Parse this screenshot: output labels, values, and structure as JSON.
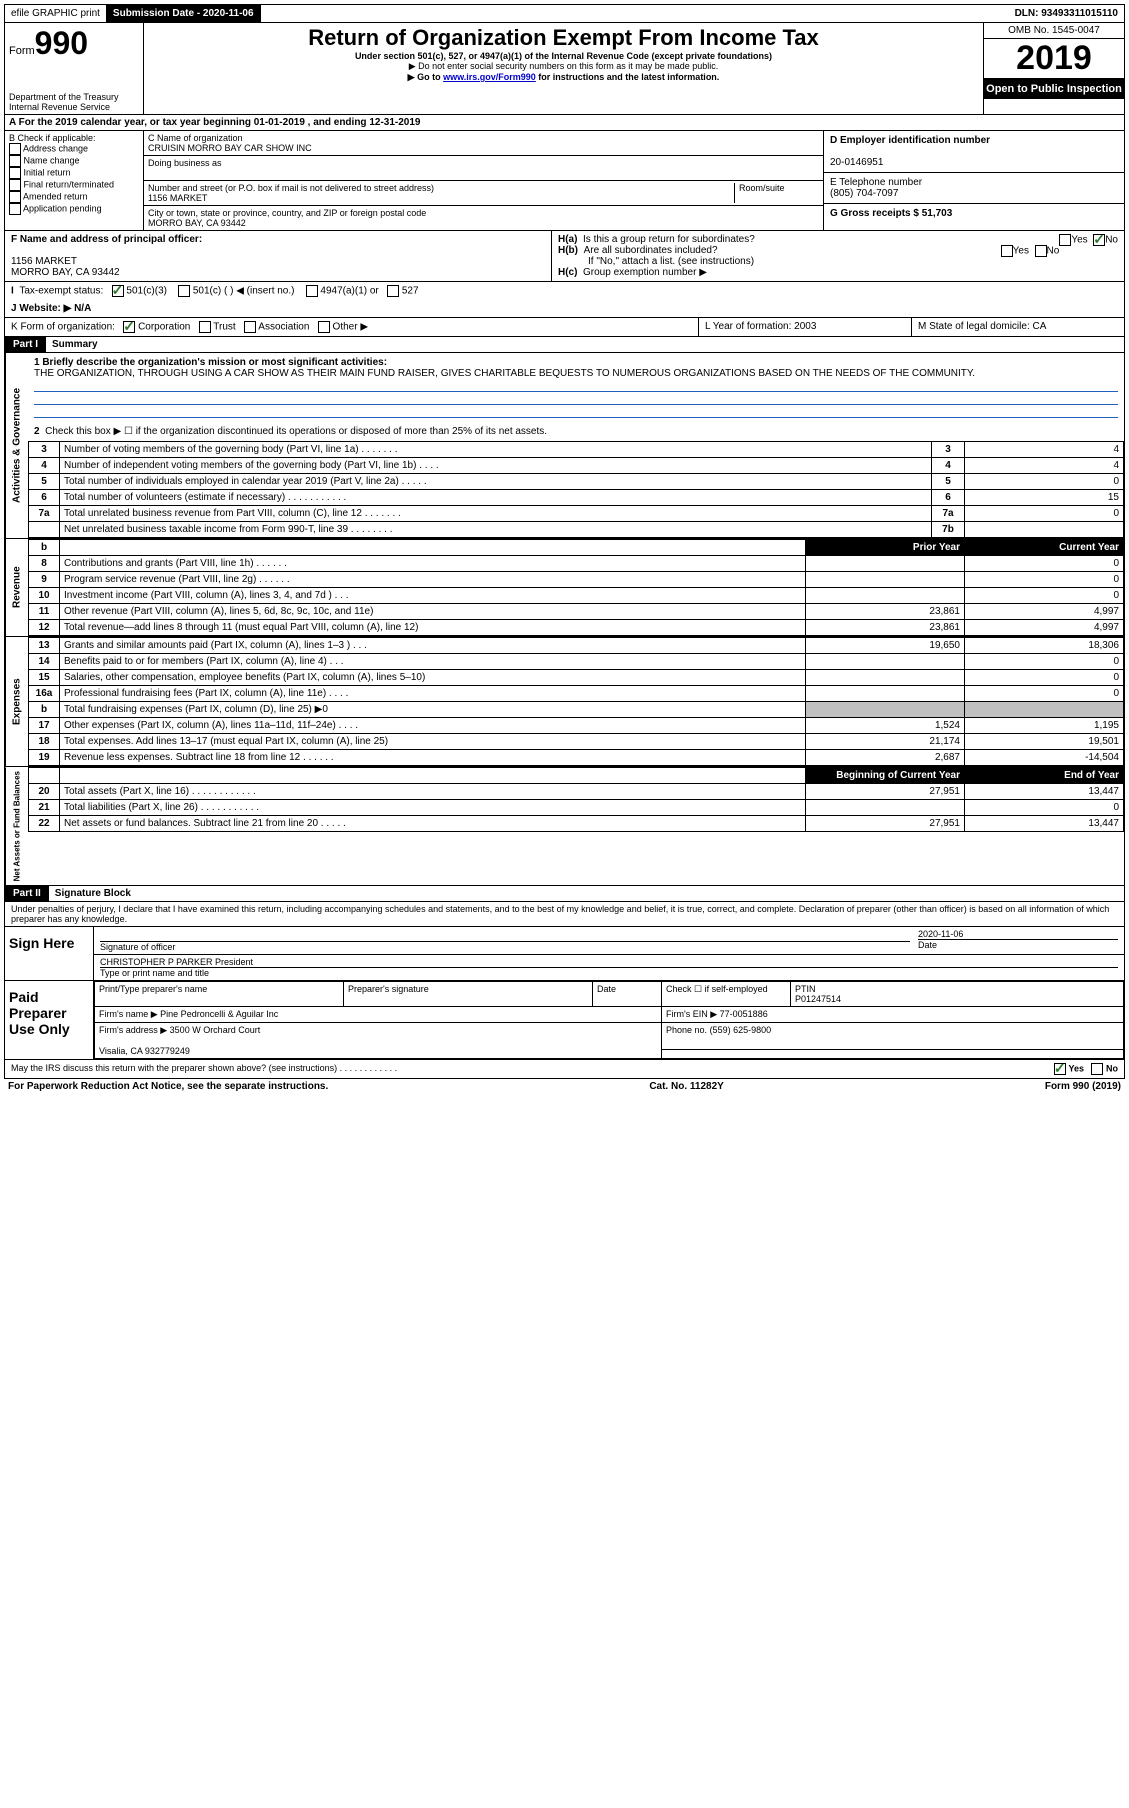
{
  "topbar": {
    "efile": "efile GRAPHIC print",
    "submission_label": "Submission Date - 2020-11-06",
    "dln": "DLN: 93493311015110"
  },
  "header": {
    "form_word": "Form",
    "form_num": "990",
    "dept1": "Department of the Treasury",
    "dept2": "Internal Revenue Service",
    "title": "Return of Organization Exempt From Income Tax",
    "subtitle": "Under section 501(c), 527, or 4947(a)(1) of the Internal Revenue Code (except private foundations)",
    "note1": "▶ Do not enter social security numbers on this form as it may be made public.",
    "note2_pre": "▶ Go to ",
    "note2_link": "www.irs.gov/Form990",
    "note2_post": " for instructions and the latest information.",
    "omb": "OMB No. 1545-0047",
    "year": "2019",
    "open": "Open to Public Inspection"
  },
  "rowA": "A  For the 2019 calendar year, or tax year beginning 01-01-2019    , and ending 12-31-2019",
  "colB": {
    "label": "B Check if applicable:",
    "opts": [
      "Address change",
      "Name change",
      "Initial return",
      "Final return/terminated",
      "Amended return",
      "Application pending"
    ]
  },
  "colC": {
    "name_lbl": "C Name of organization",
    "name": "CRUISIN MORRO BAY CAR SHOW INC",
    "dba_lbl": "Doing business as",
    "addr_lbl": "Number and street (or P.O. box if mail is not delivered to street address)",
    "room_lbl": "Room/suite",
    "addr": "1156 MARKET",
    "city_lbl": "City or town, state or province, country, and ZIP or foreign postal code",
    "city": "MORRO BAY, CA  93442"
  },
  "colD": {
    "ein_lbl": "D Employer identification number",
    "ein": "20-0146951",
    "tel_lbl": "E Telephone number",
    "tel": "(805) 704-7097",
    "gross_lbl": "G Gross receipts $ 51,703"
  },
  "rowF": {
    "label": "F  Name and address of principal officer:",
    "addr1": "1156 MARKET",
    "addr2": "MORRO BAY, CA  93442"
  },
  "rowH": {
    "ha": "Is this a group return for subordinates?",
    "hb": "Are all subordinates included?",
    "hb_note": "If \"No,\" attach a list. (see instructions)",
    "hc": "Group exemption number ▶",
    "yes": "Yes",
    "no": "No"
  },
  "rowI": {
    "label": "Tax-exempt status:",
    "o1": "501(c)(3)",
    "o2": "501(c) (  ) ◀ (insert no.)",
    "o3": "4947(a)(1) or",
    "o4": "527"
  },
  "rowJ": "J   Website: ▶   N/A",
  "rowK": {
    "label": "K Form of organization:",
    "o1": "Corporation",
    "o2": "Trust",
    "o3": "Association",
    "o4": "Other ▶"
  },
  "rowL": "L Year of formation: 2003",
  "rowM": "M State of legal domicile: CA",
  "part1": {
    "hdr": "Part I",
    "title": "Summary",
    "l1_lbl": "1  Briefly describe the organization's mission or most significant activities:",
    "l1_text": "THE ORGANIZATION, THROUGH USING A CAR SHOW AS THEIR MAIN FUND RAISER, GIVES CHARITABLE BEQUESTS TO NUMEROUS ORGANIZATIONS BASED ON THE NEEDS OF THE COMMUNITY.",
    "l2": "Check this box ▶ ☐  if the organization discontinued its operations or disposed of more than 25% of its net assets.",
    "col_prior": "Prior Year",
    "col_current": "Current Year",
    "col_boy": "Beginning of Current Year",
    "col_eoy": "End of Year",
    "vert_act": "Activities & Governance",
    "vert_rev": "Revenue",
    "vert_exp": "Expenses",
    "vert_net": "Net Assets or Fund Balances"
  },
  "lines_gov": [
    {
      "n": "3",
      "d": "Number of voting members of the governing body (Part VI, line 1a)  .    .    .    .    .    .    .",
      "b": "3",
      "v": "4"
    },
    {
      "n": "4",
      "d": "Number of independent voting members of the governing body (Part VI, line 1b)   .    .    .    .",
      "b": "4",
      "v": "4"
    },
    {
      "n": "5",
      "d": "Total number of individuals employed in calendar year 2019 (Part V, line 2a)   .    .    .    .    .",
      "b": "5",
      "v": "0"
    },
    {
      "n": "6",
      "d": "Total number of volunteers (estimate if necessary)    .    .    .    .    .    .    .    .    .    .    .",
      "b": "6",
      "v": "15"
    },
    {
      "n": "7a",
      "d": "Total unrelated business revenue from Part VIII, column (C), line 12   .    .    .    .    .    .    .",
      "b": "7a",
      "v": "0"
    },
    {
      "n": "",
      "d": "Net unrelated business taxable income from Form 990-T, line 39   .    .    .    .    .    .    .    .",
      "b": "7b",
      "v": ""
    }
  ],
  "lines_rev": [
    {
      "n": "8",
      "d": "Contributions and grants (Part VIII, line 1h)   .    .    .    .    .    .",
      "p": "",
      "c": "0"
    },
    {
      "n": "9",
      "d": "Program service revenue (Part VIII, line 2g)   .    .    .    .    .    .",
      "p": "",
      "c": "0"
    },
    {
      "n": "10",
      "d": "Investment income (Part VIII, column (A), lines 3, 4, and 7d )    .    .    .",
      "p": "",
      "c": "0"
    },
    {
      "n": "11",
      "d": "Other revenue (Part VIII, column (A), lines 5, 6d, 8c, 9c, 10c, and 11e)",
      "p": "23,861",
      "c": "4,997"
    },
    {
      "n": "12",
      "d": "Total revenue—add lines 8 through 11 (must equal Part VIII, column (A), line 12)",
      "p": "23,861",
      "c": "4,997"
    }
  ],
  "lines_exp": [
    {
      "n": "13",
      "d": "Grants and similar amounts paid (Part IX, column (A), lines 1–3 )   .    .    .",
      "p": "19,650",
      "c": "18,306"
    },
    {
      "n": "14",
      "d": "Benefits paid to or for members (Part IX, column (A), line 4)   .    .    .",
      "p": "",
      "c": "0"
    },
    {
      "n": "15",
      "d": "Salaries, other compensation, employee benefits (Part IX, column (A), lines 5–10)",
      "p": "",
      "c": "0"
    },
    {
      "n": "16a",
      "d": "Professional fundraising fees (Part IX, column (A), line 11e)   .    .    .    .",
      "p": "",
      "c": "0"
    },
    {
      "n": "b",
      "d": "Total fundraising expenses (Part IX, column (D), line 25) ▶0",
      "p": "shaded",
      "c": "shaded"
    },
    {
      "n": "17",
      "d": "Other expenses (Part IX, column (A), lines 11a–11d, 11f–24e)   .    .    .    .",
      "p": "1,524",
      "c": "1,195"
    },
    {
      "n": "18",
      "d": "Total expenses. Add lines 13–17 (must equal Part IX, column (A), line 25)",
      "p": "21,174",
      "c": "19,501"
    },
    {
      "n": "19",
      "d": "Revenue less expenses. Subtract line 18 from line 12   .    .    .    .    .    .",
      "p": "2,687",
      "c": "-14,504"
    }
  ],
  "lines_net": [
    {
      "n": "20",
      "d": "Total assets (Part X, line 16)   .    .    .    .    .    .    .    .    .    .    .    .",
      "p": "27,951",
      "c": "13,447"
    },
    {
      "n": "21",
      "d": "Total liabilities (Part X, line 26)   .    .    .    .    .    .    .    .    .    .    .",
      "p": "",
      "c": "0"
    },
    {
      "n": "22",
      "d": "Net assets or fund balances. Subtract line 21 from line 20   .    .    .    .    .",
      "p": "27,951",
      "c": "13,447"
    }
  ],
  "part2": {
    "hdr": "Part II",
    "title": "Signature Block",
    "penalties": "Under penalties of perjury, I declare that I have examined this return, including accompanying schedules and statements, and to the best of my knowledge and belief, it is true, correct, and complete. Declaration of preparer (other than officer) is based on all information of which preparer has any knowledge."
  },
  "sign": {
    "here": "Sign Here",
    "sig_lbl": "Signature of officer",
    "date_lbl": "Date",
    "date": "2020-11-06",
    "name": "CHRISTOPHER P PARKER  President",
    "name_lbl": "Type or print name and title"
  },
  "paid": {
    "title": "Paid Preparer Use Only",
    "col1": "Print/Type preparer's name",
    "col2": "Preparer's signature",
    "col3": "Date",
    "check_lbl": "Check ☐ if self-employed",
    "ptin_lbl": "PTIN",
    "ptin": "P01247514",
    "firm_name_lbl": "Firm's name    ▶",
    "firm_name": "Pine Pedroncelli & Aguilar Inc",
    "firm_ein_lbl": "Firm's EIN ▶",
    "firm_ein": "77-0051886",
    "firm_addr_lbl": "Firm's address ▶",
    "firm_addr1": "3500 W Orchard Court",
    "firm_addr2": "Visalia, CA  932779249",
    "phone_lbl": "Phone no.",
    "phone": "(559) 625-9800"
  },
  "discuss": "May the IRS discuss this return with the preparer shown above? (see instructions)   .    .    .    .    .    .    .    .    .    .    .    .",
  "footer": {
    "l": "For Paperwork Reduction Act Notice, see the separate instructions.",
    "m": "Cat. No. 11282Y",
    "r": "Form 990 (2019)"
  }
}
